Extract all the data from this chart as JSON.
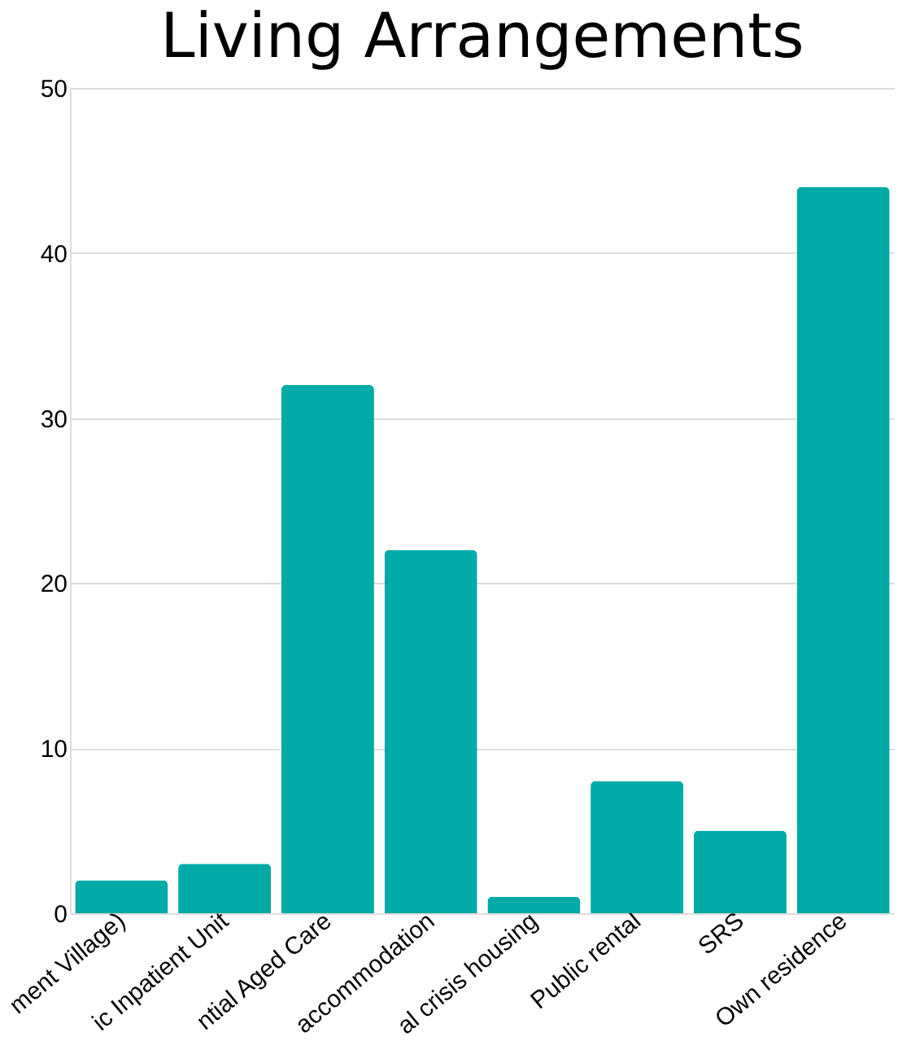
{
  "chart_data": {
    "type": "bar",
    "title": "Living Arrangements",
    "categories": [
      "ment Village)",
      "ic Inpatient Unit",
      "ntial Aged Care",
      "accommodation",
      "al crisis housing",
      "Public rental",
      "SRS",
      "Own residence"
    ],
    "values": [
      2,
      3,
      32,
      22,
      1,
      8,
      5,
      44
    ],
    "color": "#00aaa6",
    "ylim": [
      0,
      50
    ],
    "yticks": [
      0,
      10,
      20,
      30,
      40,
      50
    ],
    "grid": "y"
  }
}
